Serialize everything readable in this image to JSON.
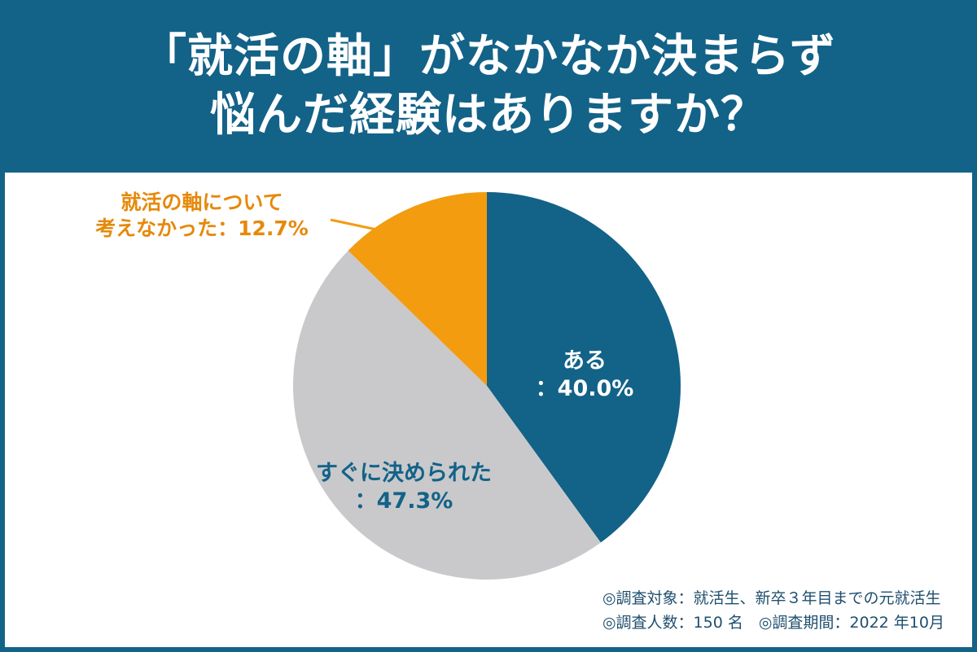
{
  "title": {
    "line1": "「就活の軸」がなかなか決まらず",
    "line2": "悩んだ経験はありますか？"
  },
  "colors": {
    "header_bg": "#136288",
    "slice_yes": "#136288",
    "slice_decided": "#c9c9cb",
    "slice_notconsidered": "#f39c0f",
    "label_notconsidered": "#e6890a",
    "label_decided": "#136288"
  },
  "chart_data": {
    "type": "pie",
    "start_angle_deg": 0,
    "direction": "clockwise",
    "slices": [
      {
        "name": "ある",
        "value": 40.0,
        "label_lines": [
          "ある",
          "：40.0%"
        ],
        "color": "#136288",
        "label_color": "#ffffff"
      },
      {
        "name": "すぐに決められた",
        "value": 47.3,
        "label_lines": [
          "すぐに決められた",
          "：47.3%"
        ],
        "color": "#c9c9cb",
        "label_color": "#136288"
      },
      {
        "name": "就活の軸について考えなかった",
        "value": 12.7,
        "label_lines": [
          "就活の軸について",
          "考えなかった：12.7%"
        ],
        "color": "#f39c0f",
        "label_color": "#e6890a"
      }
    ]
  },
  "footer": {
    "line1": "◎調査対象：就活生、新卒３年目までの元就活生",
    "line2": "◎調査人数：150 名　◎調査期間：2022 年10月"
  }
}
